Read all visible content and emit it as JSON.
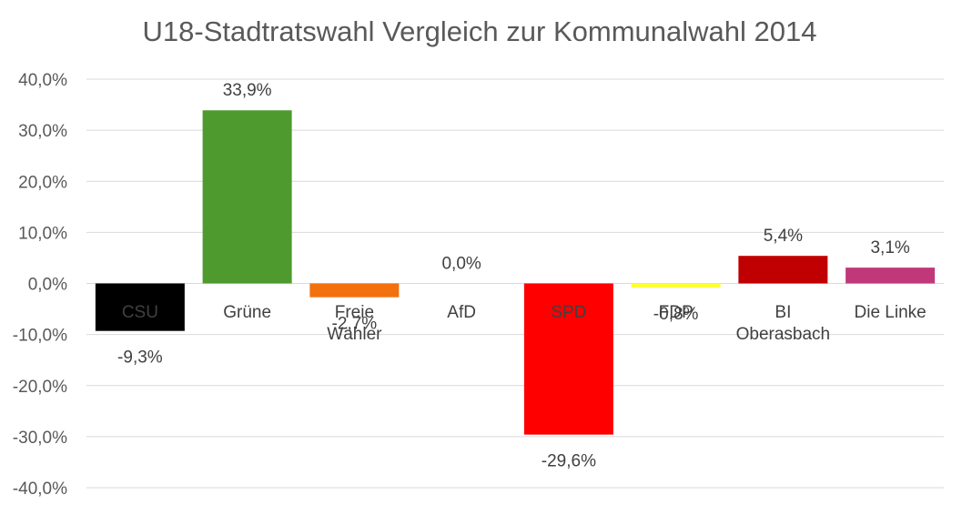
{
  "chart_data": {
    "type": "bar",
    "title": "U18-Stadtratswahl Vergleich zur Kommunalwahl 2014",
    "xlabel": "",
    "ylabel": "",
    "ylim": [
      -40,
      40
    ],
    "yticks": [
      40,
      30,
      20,
      10,
      0,
      -10,
      -20,
      -30,
      -40
    ],
    "ytick_labels": [
      "40,0%",
      "30,0%",
      "20,0%",
      "10,0%",
      "0,0%",
      "-10,0%",
      "-20,0%",
      "-30,0%",
      "-40,0%"
    ],
    "grid": true,
    "legend": "none",
    "categories": [
      [
        "CSU"
      ],
      [
        "Grüne"
      ],
      [
        "Freie",
        "Wähler"
      ],
      [
        "AfD"
      ],
      [
        "SPD"
      ],
      [
        "FDP"
      ],
      [
        "BI",
        "Oberasbach"
      ],
      [
        "Die Linke"
      ]
    ],
    "values": [
      -9.3,
      33.9,
      -2.7,
      0.0,
      -29.6,
      -0.8,
      5.4,
      3.1
    ],
    "data_labels": [
      "-9,3%",
      "33,9%",
      "-2,7%",
      "0,0%",
      "-29,6%",
      "-0,8%",
      "5,4%",
      "3,1%"
    ],
    "colors": [
      "#000000",
      "#4E9A2E",
      "#F2700E",
      "#9E9E9E",
      "#FF0000",
      "#FFFF33",
      "#C00000",
      "#C0387A"
    ]
  }
}
